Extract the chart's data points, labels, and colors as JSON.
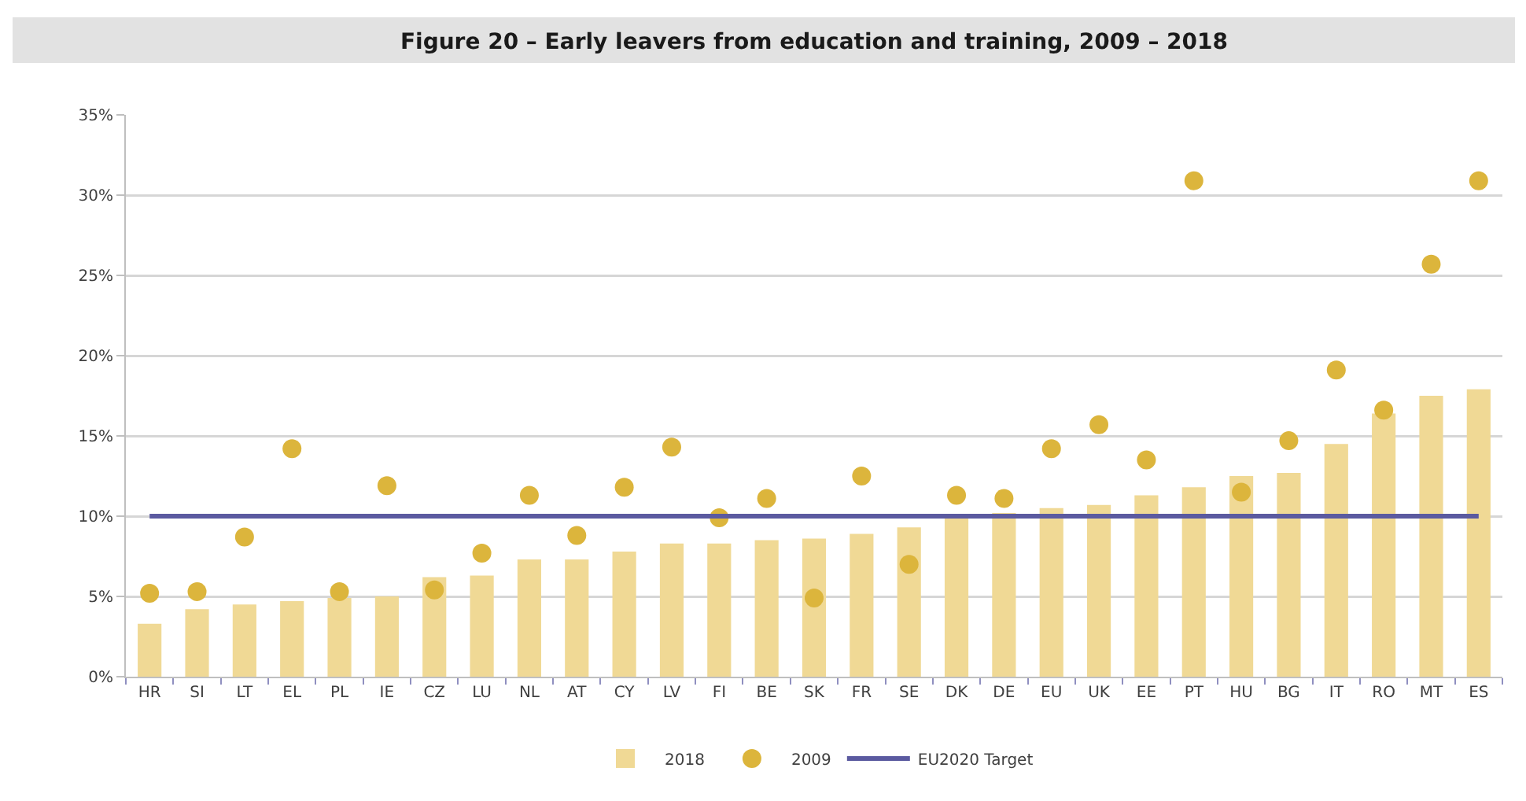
{
  "chart_data": {
    "type": "bar",
    "title": "Figure 20 – Early leavers from education and training, 2009 – 2018",
    "categories": [
      "HR",
      "SI",
      "LT",
      "EL",
      "PL",
      "IE",
      "CZ",
      "LU",
      "NL",
      "AT",
      "CY",
      "LV",
      "FI",
      "BE",
      "SK",
      "FR",
      "SE",
      "DK",
      "DE",
      "EU",
      "UK",
      "EE",
      "PT",
      "HU",
      "BG",
      "IT",
      "RO",
      "MT",
      "ES"
    ],
    "series": [
      {
        "name": "2018",
        "color": "#f0d995",
        "values": [
          3.3,
          4.2,
          4.5,
          4.7,
          4.9,
          5.0,
          6.2,
          6.3,
          7.3,
          7.3,
          7.8,
          8.3,
          8.3,
          8.5,
          8.6,
          8.9,
          9.3,
          10.0,
          10.2,
          10.5,
          10.7,
          11.3,
          11.8,
          12.5,
          12.7,
          14.5,
          16.4,
          17.5,
          17.9
        ]
      },
      {
        "name": "2009",
        "type": "scatter",
        "color": "#dcb53c",
        "marker": "circle",
        "values": [
          5.2,
          5.3,
          8.7,
          14.2,
          5.3,
          11.9,
          5.4,
          7.7,
          11.3,
          8.8,
          11.8,
          14.3,
          9.9,
          11.1,
          4.9,
          12.5,
          7.0,
          11.3,
          11.1,
          14.2,
          15.7,
          13.5,
          30.9,
          11.5,
          14.7,
          19.1,
          16.6,
          25.7,
          30.9
        ]
      },
      {
        "name": "EU2020 Target",
        "type": "line",
        "color": "#5b5aa0",
        "marker": "none",
        "line_style": "solid",
        "values": [
          10,
          10,
          10,
          10,
          10,
          10,
          10,
          10,
          10,
          10,
          10,
          10,
          10,
          10,
          10,
          10,
          10,
          10,
          10,
          10,
          10,
          10,
          10,
          10,
          10,
          10,
          10,
          10,
          10
        ]
      }
    ],
    "ylim": [
      0,
      35
    ],
    "yticks": [
      {
        "value": 0,
        "label": "0%"
      },
      {
        "value": 5,
        "label": "5%"
      },
      {
        "value": 10,
        "label": "10%"
      },
      {
        "value": 15,
        "label": "15%"
      },
      {
        "value": 20,
        "label": "20%"
      },
      {
        "value": 25,
        "label": "25%"
      },
      {
        "value": 30,
        "label": "30%"
      },
      {
        "value": 35,
        "label": "35%"
      }
    ],
    "grid": "y",
    "legend": "bottom"
  }
}
